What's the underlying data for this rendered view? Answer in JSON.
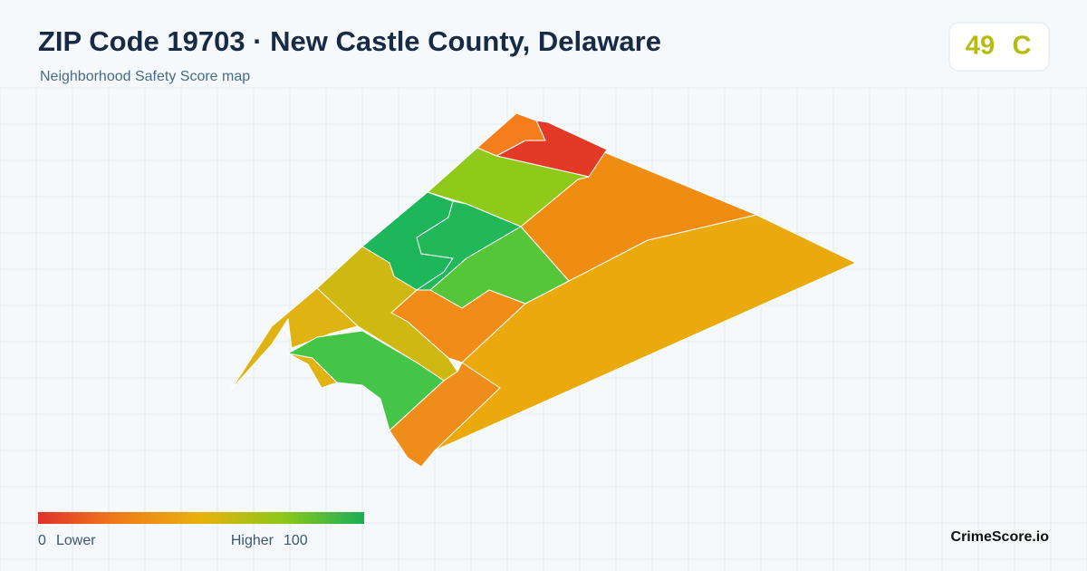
{
  "header": {
    "title": "ZIP Code 19703 · New Castle County, Delaware",
    "subtitle": "Neighborhood Safety Score map"
  },
  "score": {
    "value": 49,
    "grade": "C"
  },
  "legend": {
    "min": 0,
    "min_label": "Lower",
    "max_label": "Higher",
    "max": 100
  },
  "footer": {
    "brand": "CrimeScore.io"
  }
}
